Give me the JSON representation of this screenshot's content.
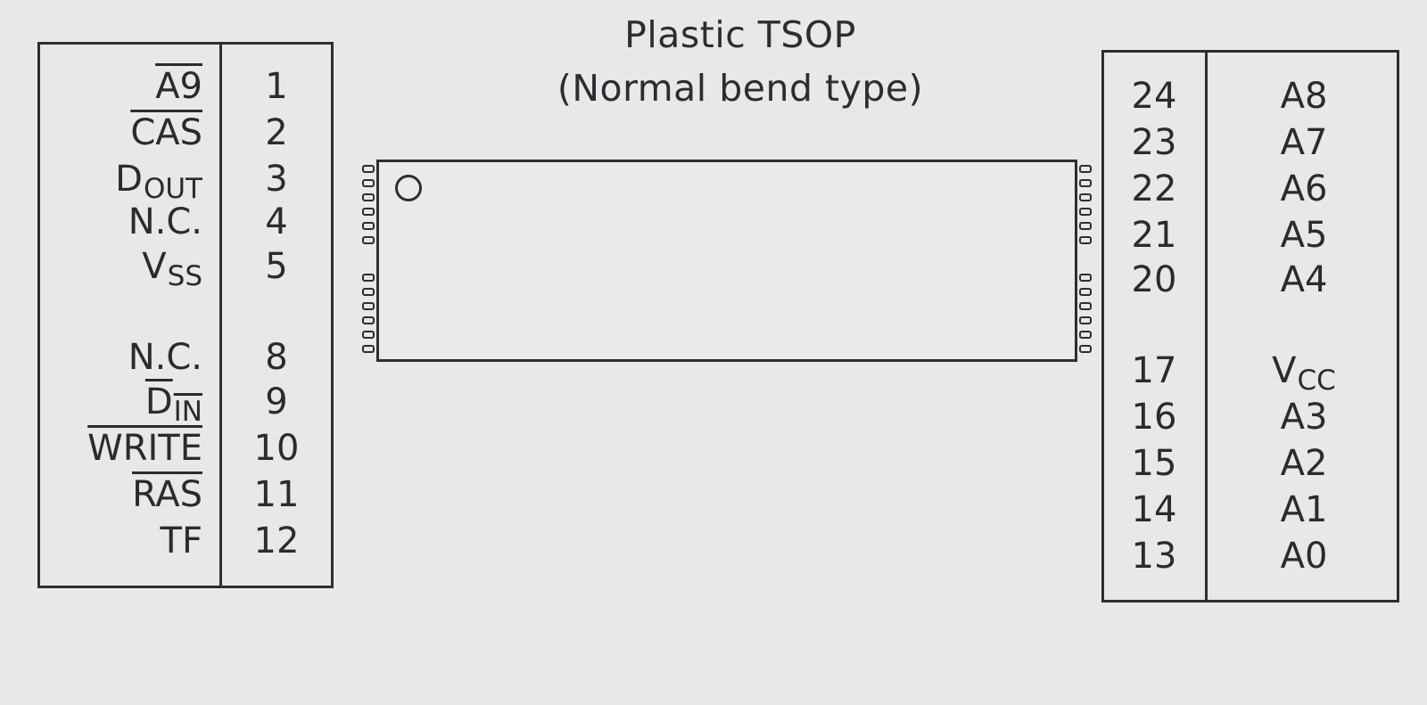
{
  "title": {
    "line1": "Plastic TSOP",
    "line2": "(Normal bend type)"
  },
  "left_pins": [
    {
      "label": "A9",
      "sub": "",
      "overline": true,
      "number": "1"
    },
    {
      "label": "CAS",
      "sub": "",
      "overline": true,
      "number": "2"
    },
    {
      "label": "D",
      "sub": "OUT",
      "overline": false,
      "number": "3"
    },
    {
      "label": "N.C.",
      "sub": "",
      "overline": false,
      "number": "4"
    },
    {
      "label": "V",
      "sub": "SS",
      "overline": false,
      "number": "5"
    },
    {
      "label": "N.C.",
      "sub": "",
      "overline": false,
      "number": "8"
    },
    {
      "label": "D",
      "sub": "IN",
      "overline": true,
      "number": "9"
    },
    {
      "label": "WRITE",
      "sub": "",
      "overline": true,
      "number": "10"
    },
    {
      "label": "RAS",
      "sub": "",
      "overline": true,
      "number": "11"
    },
    {
      "label": "TF",
      "sub": "",
      "overline": false,
      "number": "12"
    }
  ],
  "right_pins": [
    {
      "number": "24",
      "label": "A8",
      "sub": ""
    },
    {
      "number": "23",
      "label": "A7",
      "sub": ""
    },
    {
      "number": "22",
      "label": "A6",
      "sub": ""
    },
    {
      "number": "21",
      "label": "A5",
      "sub": ""
    },
    {
      "number": "20",
      "label": "A4",
      "sub": ""
    },
    {
      "number": "17",
      "label": "V",
      "sub": "CC"
    },
    {
      "number": "16",
      "label": "A3",
      "sub": ""
    },
    {
      "number": "15",
      "label": "A2",
      "sub": ""
    },
    {
      "number": "14",
      "label": "A1",
      "sub": ""
    },
    {
      "number": "13",
      "label": "A0",
      "sub": ""
    }
  ],
  "leads_per_side": 12,
  "colors": {
    "background": "#e9e7ea",
    "ink": "#2e2d31"
  }
}
